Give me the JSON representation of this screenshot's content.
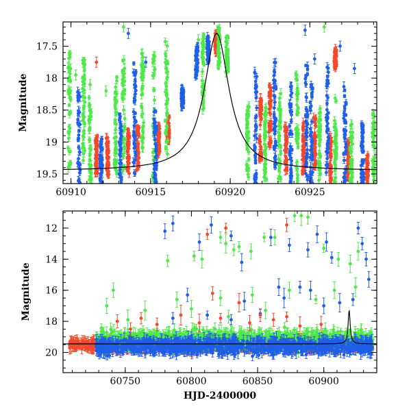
{
  "colors": {
    "red": "#f04a2e",
    "green": "#4ee84a",
    "blue": "#1f5fe8",
    "axis": "#000000"
  },
  "chart_data": [
    {
      "type": "scatter",
      "name": "top-panel",
      "xlabel": "",
      "ylabel": "Magnitude",
      "xlim": [
        60909.5,
        60929.2
      ],
      "ylim": [
        19.65,
        17.12
      ],
      "y_inverted": true,
      "x_ticks": [
        60910,
        60915,
        60920,
        60925
      ],
      "x_tick_labels": [
        "60910",
        "60915",
        "60920",
        "60925"
      ],
      "y_ticks": [
        17.5,
        18,
        18.5,
        19,
        19.5
      ],
      "y_tick_labels": [
        "17.5",
        "18",
        "18.5",
        "19",
        "19.5"
      ],
      "series": [
        {
          "color": "red",
          "clusters": [
            [
              60911.6,
              19.2,
              0.3
            ],
            [
              60912.3,
              19.25,
              0.35
            ],
            [
              60913.6,
              19.15,
              0.35
            ],
            [
              60914.2,
              19.1,
              0.35
            ],
            [
              60915.5,
              18.95,
              0.25
            ],
            [
              60916.1,
              18.8,
              0.2
            ],
            [
              60919.1,
              17.45,
              0.15
            ],
            [
              60921.9,
              18.8,
              0.5
            ],
            [
              60922.5,
              18.6,
              0.5
            ],
            [
              60923.5,
              19.1,
              0.35
            ],
            [
              60924.6,
              19.1,
              0.4
            ],
            [
              60925.3,
              19.0,
              0.4
            ],
            [
              60926.3,
              19.3,
              0.4
            ],
            [
              60927.4,
              19.3,
              0.3
            ],
            [
              60928.6,
              19.4,
              0.2
            ],
            [
              60926.6,
              17.7,
              0.15
            ]
          ],
          "outliers": [
            [
              60911.6,
              17.75
            ],
            [
              60926.6,
              17.55
            ]
          ]
        },
        {
          "color": "green",
          "clusters": [
            [
              60909.9,
              18.5,
              0.9
            ],
            [
              60910.8,
              18.5,
              0.8
            ],
            [
              60911.2,
              19.0,
              0.7
            ],
            [
              60912.8,
              18.7,
              0.8
            ],
            [
              60913.3,
              18.6,
              0.9
            ],
            [
              60914.5,
              18.4,
              0.8
            ],
            [
              60915.2,
              18.6,
              1.0
            ],
            [
              60916.0,
              18.3,
              0.9
            ],
            [
              60918.3,
              17.9,
              0.6
            ],
            [
              60919.3,
              17.5,
              0.35
            ],
            [
              60919.8,
              17.65,
              0.3
            ],
            [
              60921.1,
              19.0,
              0.6
            ],
            [
              60922.2,
              19.0,
              0.6
            ],
            [
              60923.1,
              18.9,
              0.7
            ],
            [
              60924.2,
              18.8,
              0.9
            ],
            [
              60925.6,
              19.0,
              0.6
            ],
            [
              60926.6,
              19.0,
              0.7
            ],
            [
              60927.6,
              19.2,
              0.5
            ],
            [
              60929.0,
              19.1,
              0.6
            ]
          ],
          "outliers": [
            [
              60910.3,
              17.95
            ],
            [
              60911.2,
              18.1
            ],
            [
              60912.2,
              18.2
            ],
            [
              60913.3,
              17.2
            ],
            [
              60918.0,
              17.4
            ],
            [
              60925.9,
              17.2
            ]
          ]
        },
        {
          "color": "blue",
          "clusters": [
            [
              60910.5,
              19.0,
              0.8
            ],
            [
              60911.9,
              19.3,
              0.35
            ],
            [
              60913.1,
              19.1,
              0.6
            ],
            [
              60914.0,
              18.6,
              0.9
            ],
            [
              60915.3,
              19.1,
              0.6
            ],
            [
              60917.0,
              18.3,
              0.15
            ],
            [
              60917.9,
              17.75,
              0.25
            ],
            [
              60918.6,
              17.55,
              0.2
            ],
            [
              60921.6,
              18.8,
              0.9
            ],
            [
              60922.8,
              18.5,
              0.9
            ],
            [
              60923.8,
              18.9,
              0.8
            ],
            [
              60924.8,
              18.7,
              0.9
            ],
            [
              60925.1,
              18.9,
              0.8
            ],
            [
              60926.1,
              18.6,
              0.9
            ],
            [
              60927.2,
              18.9,
              0.8
            ],
            [
              60928.3,
              19.2,
              0.5
            ]
          ],
          "outliers": [
            [
              60913.6,
              17.3
            ],
            [
              60914.7,
              17.75
            ],
            [
              60924.7,
              17.25
            ],
            [
              60925.3,
              17.7
            ],
            [
              60926.9,
              17.5
            ],
            [
              60927.8,
              17.85
            ]
          ]
        }
      ],
      "model_curve": {
        "baseline": 19.45,
        "amplitude": 2.15,
        "t0": 60919.15,
        "tE": 0.95
      }
    },
    {
      "type": "scatter",
      "name": "bottom-panel",
      "xlabel": "HJD-2400000",
      "ylabel": "Magnitude",
      "xlim": [
        60703,
        60940
      ],
      "ylim": [
        21.3,
        10.9
      ],
      "y_inverted": true,
      "x_ticks": [
        60750,
        60800,
        60850,
        60900
      ],
      "x_tick_labels": [
        "60750",
        "60800",
        "60850",
        "60900"
      ],
      "y_ticks": [
        12,
        14,
        16,
        18,
        20
      ],
      "y_tick_labels": [
        "12",
        "14",
        "16",
        "18",
        "20"
      ],
      "bands": [
        {
          "color": "red",
          "x_start": 60708,
          "x_end": 60937,
          "y_center": 19.5,
          "spread": 0.45
        },
        {
          "color": "green",
          "x_start": 60728,
          "x_end": 60937,
          "y_center": 19.2,
          "spread": 0.9
        },
        {
          "color": "blue",
          "x_start": 60728,
          "x_end": 60937,
          "y_center": 19.6,
          "spread": 0.7
        }
      ],
      "series": [
        {
          "color": "blue",
          "points": [
            [
              60780,
              12.2
            ],
            [
              60786,
              11.7
            ],
            [
              60806,
              12.9
            ],
            [
              60815,
              11.8
            ],
            [
              60830,
              12.5
            ],
            [
              60838,
              14.2
            ],
            [
              60860,
              12.6
            ],
            [
              60866,
              15.8
            ],
            [
              60874,
              13.1
            ],
            [
              60882,
              15.8
            ],
            [
              60888,
              13.4
            ],
            [
              60895,
              12.4
            ],
            [
              60902,
              12.9
            ],
            [
              60906,
              13.9
            ],
            [
              60926,
              12.0
            ],
            [
              60929,
              13.0
            ],
            [
              60932,
              14.0
            ],
            [
              60934,
              15.3
            ],
            [
              60786,
              17.8
            ],
            [
              60797,
              16.3
            ],
            [
              60812,
              17.6
            ],
            [
              60830,
              17.9
            ],
            [
              60840,
              16.7
            ],
            [
              60852,
              17.5
            ],
            [
              60870,
              16.5
            ],
            [
              60890,
              16.0
            ],
            [
              60900,
              17.0
            ],
            [
              60912,
              16.8
            ],
            [
              60922,
              16.6
            ]
          ]
        },
        {
          "color": "green",
          "points": [
            [
              60782,
              14.1
            ],
            [
              60802,
              13.8
            ],
            [
              60808,
              14.0
            ],
            [
              60822,
              12.6
            ],
            [
              60826,
              13.0
            ],
            [
              60832,
              13.4
            ],
            [
              60836,
              13.2
            ],
            [
              60845,
              13.5
            ],
            [
              60855,
              12.6
            ],
            [
              60863,
              12.6
            ],
            [
              60878,
              11.2
            ],
            [
              60883,
              11.2
            ],
            [
              60888,
              11.3
            ],
            [
              60900,
              13.3
            ],
            [
              60911,
              14.0
            ],
            [
              60920,
              14.3
            ],
            [
              60926,
              13.5
            ],
            [
              60736,
              17.0
            ],
            [
              60741,
              16.0
            ],
            [
              60752,
              17.9
            ],
            [
              60765,
              17.3
            ],
            [
              60789,
              16.6
            ],
            [
              60800,
              17.2
            ],
            [
              60822,
              16.5
            ],
            [
              60828,
              17.7
            ],
            [
              60846,
              16.3
            ],
            [
              60856,
              17.3
            ],
            [
              60874,
              16.0
            ],
            [
              60894,
              16.6
            ],
            [
              60908,
              16.0
            ],
            [
              60924,
              15.8
            ]
          ]
        },
        {
          "color": "red",
          "points": [
            [
              60812,
              12.4
            ],
            [
              60826,
              12.0
            ],
            [
              60872,
              11.8
            ],
            [
              60744,
              18.0
            ],
            [
              60754,
              18.5
            ],
            [
              60762,
              17.8
            ],
            [
              60774,
              18.2
            ],
            [
              60792,
              17.6
            ],
            [
              60806,
              18.1
            ],
            [
              60816,
              16.2
            ],
            [
              60822,
              17.8
            ],
            [
              60836,
              16.8
            ],
            [
              60844,
              18.1
            ],
            [
              60852,
              17.6
            ],
            [
              60862,
              17.9
            ],
            [
              60872,
              17.7
            ],
            [
              60882,
              18.3
            ],
            [
              60898,
              18.2
            ]
          ]
        }
      ],
      "model_curve": {
        "baseline": 19.45,
        "amplitude": 2.15,
        "t0": 60919.15,
        "tE": 0.95
      }
    }
  ]
}
